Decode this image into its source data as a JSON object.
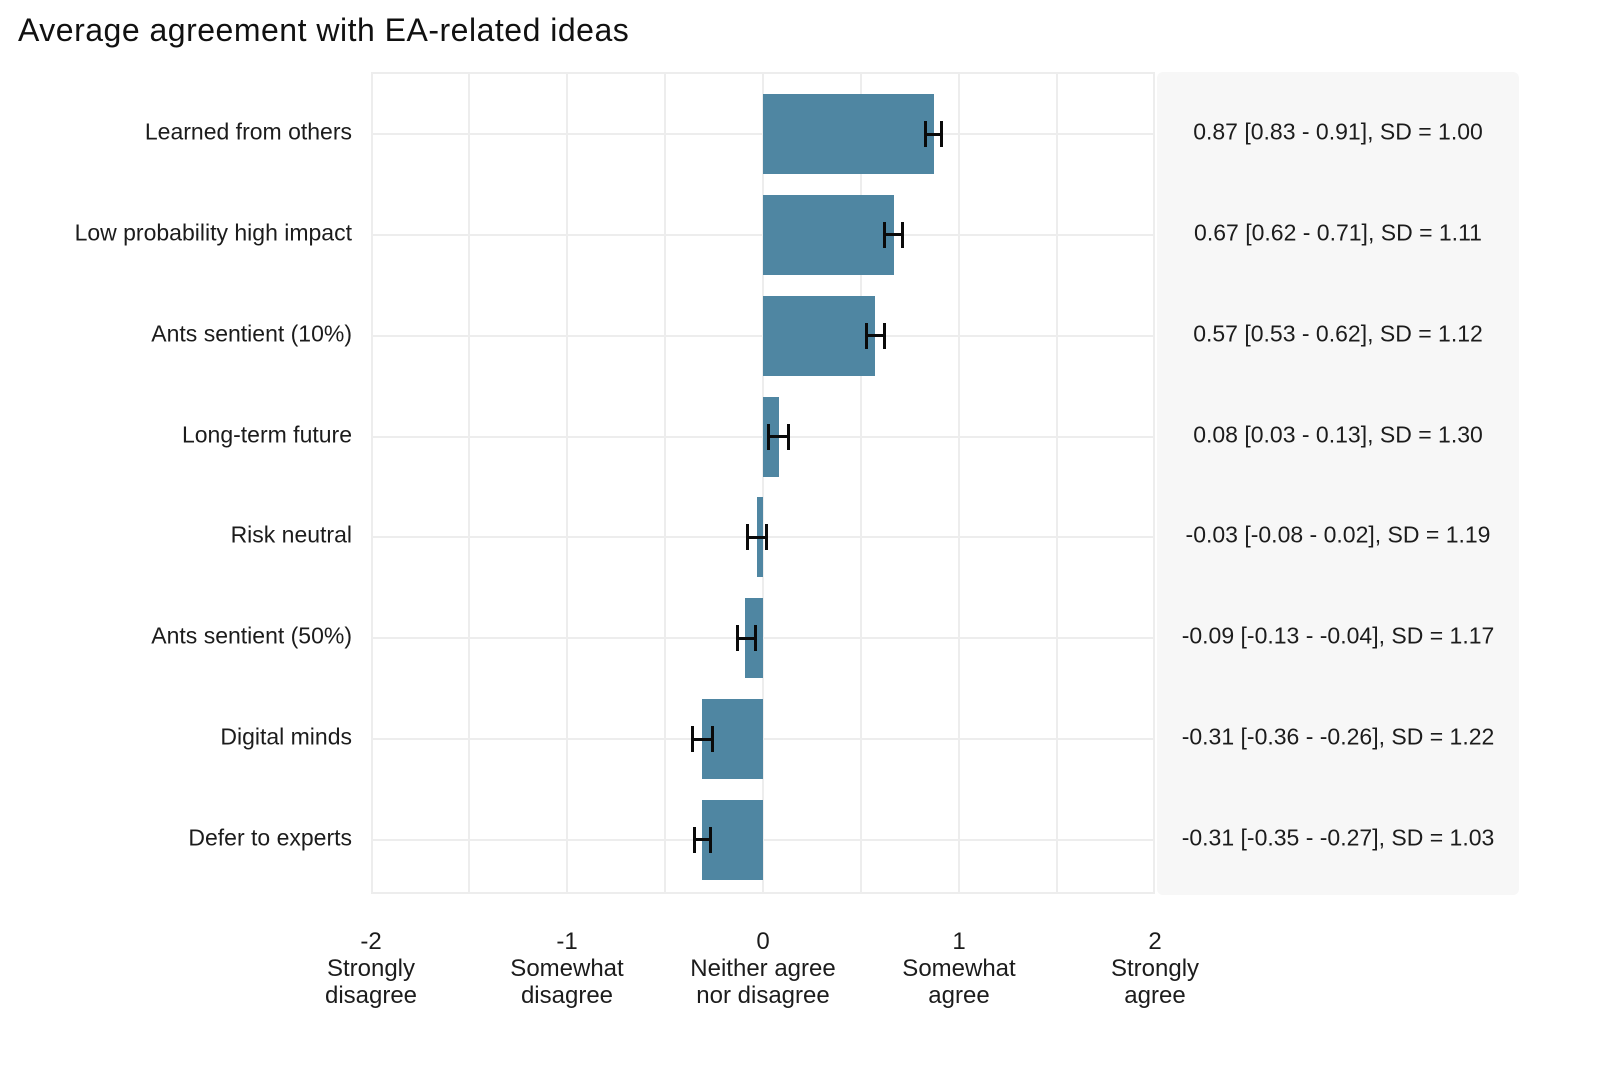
{
  "chart_data": {
    "type": "bar",
    "orientation": "horizontal",
    "title": "Average agreement with EA-related ideas",
    "xlim": [
      -2,
      2
    ],
    "grid": {
      "vertical_step": 0.5,
      "horizontal": "row-centers",
      "color": "#ededed"
    },
    "colors": {
      "bar": "#4f86a2",
      "error_bar": "#0a0a0a",
      "annotation_panel_bg": "#f7f7f7",
      "text": "#1c1c1c"
    },
    "legend": "none",
    "rows": [
      {
        "label": "Learned from others",
        "mean": 0.87,
        "ci_low": 0.83,
        "ci_high": 0.91,
        "sd": 1.0,
        "annotation": "0.87 [0.83 - 0.91], SD = 1.00"
      },
      {
        "label": "Low probability high impact",
        "mean": 0.67,
        "ci_low": 0.62,
        "ci_high": 0.71,
        "sd": 1.11,
        "annotation": "0.67 [0.62 - 0.71], SD = 1.11"
      },
      {
        "label": "Ants sentient (10%)",
        "mean": 0.57,
        "ci_low": 0.53,
        "ci_high": 0.62,
        "sd": 1.12,
        "annotation": "0.57 [0.53 - 0.62], SD = 1.12"
      },
      {
        "label": "Long-term future",
        "mean": 0.08,
        "ci_low": 0.03,
        "ci_high": 0.13,
        "sd": 1.3,
        "annotation": "0.08 [0.03 - 0.13], SD = 1.30"
      },
      {
        "label": "Risk neutral",
        "mean": -0.03,
        "ci_low": -0.08,
        "ci_high": 0.02,
        "sd": 1.19,
        "annotation": "-0.03 [-0.08 - 0.02], SD = 1.19"
      },
      {
        "label": "Ants sentient (50%)",
        "mean": -0.09,
        "ci_low": -0.13,
        "ci_high": -0.04,
        "sd": 1.17,
        "annotation": "-0.09 [-0.13 - -0.04], SD = 1.17"
      },
      {
        "label": "Digital minds",
        "mean": -0.31,
        "ci_low": -0.36,
        "ci_high": -0.26,
        "sd": 1.22,
        "annotation": "-0.31 [-0.36 - -0.26], SD = 1.22"
      },
      {
        "label": "Defer to experts",
        "mean": -0.31,
        "ci_low": -0.35,
        "ci_high": -0.27,
        "sd": 1.03,
        "annotation": "-0.31 [-0.35 - -0.27], SD = 1.03"
      }
    ],
    "x_ticks": [
      {
        "value": -2,
        "lines": [
          "-2",
          "Strongly",
          "disagree"
        ]
      },
      {
        "value": -1,
        "lines": [
          "-1",
          "Somewhat",
          "disagree"
        ]
      },
      {
        "value": 0,
        "lines": [
          "0",
          "Neither agree",
          "nor disagree"
        ]
      },
      {
        "value": 1,
        "lines": [
          "1",
          "Somewhat",
          "agree"
        ]
      },
      {
        "value": 2,
        "lines": [
          "2",
          "Strongly",
          "agree"
        ]
      }
    ]
  }
}
